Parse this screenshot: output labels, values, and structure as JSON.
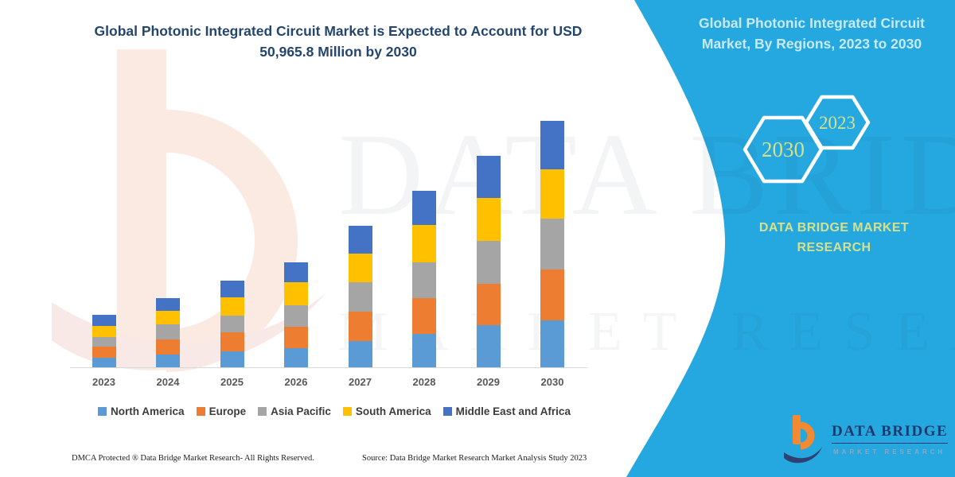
{
  "header": {
    "title_line1": "Global Photonic Integrated Circuit Market is Expected to Account for USD",
    "title_line2": "50,965.8 Million by 2030"
  },
  "right_panel": {
    "title_line1": "Global Photonic Integrated Circuit",
    "title_line2": "Market, By Regions, 2023 to 2030",
    "hexagon_back_year": "2030",
    "hexagon_front_year": "2023",
    "brand_line1": "DATA BRIDGE MARKET",
    "brand_line2": "RESEARCH",
    "background_color": "#25A8DF",
    "title_color": "#C7E9F8",
    "accent_text_color": "#D5E08C"
  },
  "logo": {
    "wordmark": "DATA BRIDGE",
    "tagline": "MARKET RESEARCH"
  },
  "watermark": {
    "line1": "DATA BRIDGE",
    "line2": "MARKET RESEARCH"
  },
  "footer": {
    "dmca": "DMCA Protected ® Data Bridge Market Research-  All Rights Reserved.",
    "source": "Source: Data Bridge Market Research  Market Analysis Study 2023"
  },
  "chart_data": {
    "type": "bar",
    "stacked": true,
    "title": "Global Photonic Integrated Circuit Market is Expected to Account for USD 50,965.8 Million by 2030",
    "unit": "USD Million",
    "categories": [
      "2023",
      "2024",
      "2025",
      "2026",
      "2027",
      "2028",
      "2029",
      "2030"
    ],
    "series": [
      {
        "name": "North America",
        "color": "#5B9BD5",
        "values": [
          2060,
          2560,
          3290,
          4020,
          5500,
          6920,
          8800,
          9789.8
        ]
      },
      {
        "name": "Europe",
        "color": "#ED7D31",
        "values": [
          2150,
          3200,
          3900,
          4370,
          6030,
          7360,
          8560,
          10426
        ]
      },
      {
        "name": "Asia Pacific",
        "color": "#A5A5A5",
        "values": [
          2080,
          3140,
          3570,
          4370,
          6040,
          7410,
          8890,
          10541
        ]
      },
      {
        "name": "South America",
        "color": "#FFC000",
        "values": [
          2350,
          2770,
          3670,
          4780,
          6040,
          7740,
          8780,
          10211
        ]
      },
      {
        "name": "Middle East and Africa",
        "color": "#4472C4",
        "values": [
          2200,
          2700,
          3570,
          4170,
          5650,
          7080,
          8680,
          9998
        ]
      }
    ],
    "totals": [
      10840,
      14370,
      18000,
      21710,
      29260,
      36510,
      43710,
      50965.8
    ],
    "ylim": [
      0,
      52000
    ],
    "y_axis_visible": false,
    "gridlines": false,
    "legend_position": "bottom"
  }
}
